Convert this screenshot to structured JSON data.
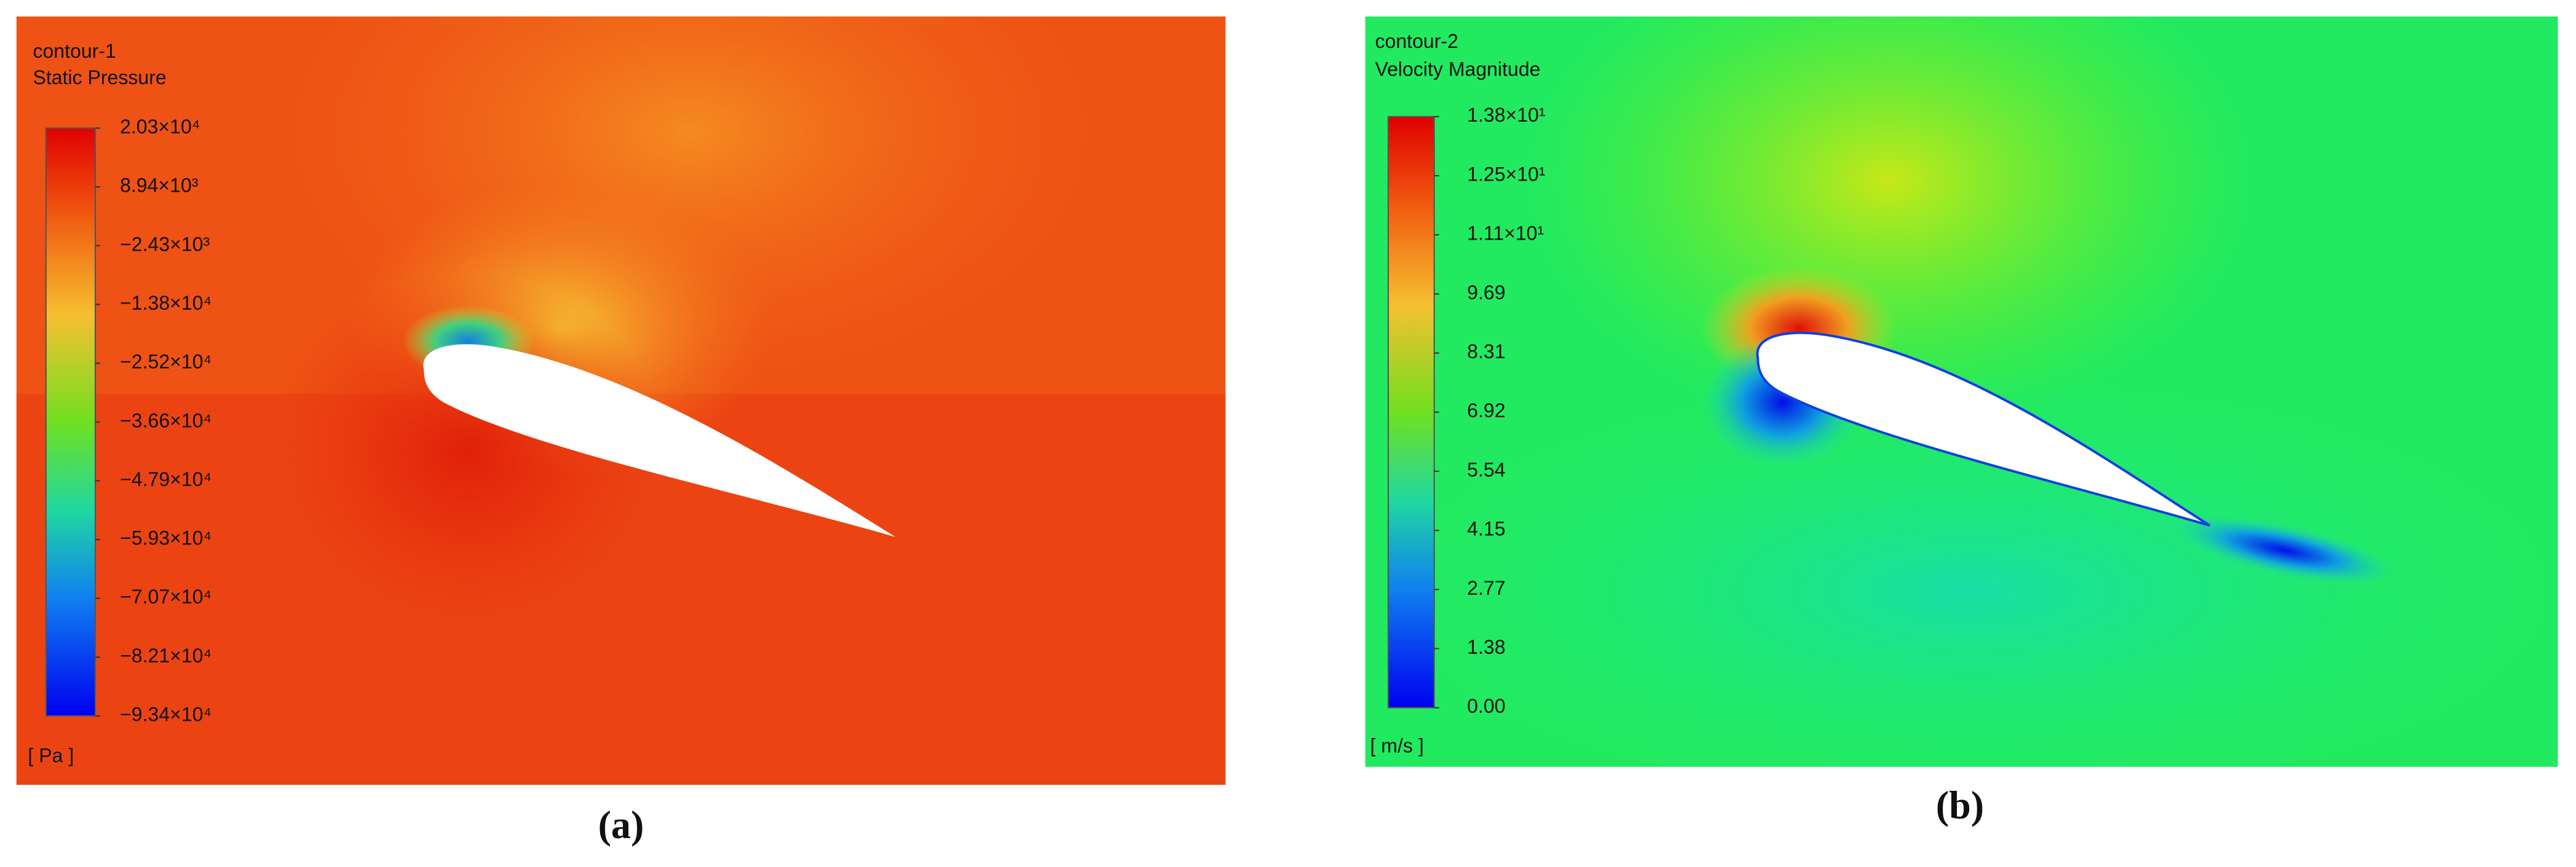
{
  "panels": [
    {
      "title": "contour-1",
      "variable": "Static Pressure",
      "unit": "[ Pa ]",
      "colorbar_labels": [
        "2.03×10⁴",
        "8.94×10³",
        "−2.43×10³",
        "−1.38×10⁴",
        "−2.52×10⁴",
        "−3.66×10⁴",
        "−4.79×10⁴",
        "−5.93×10⁴",
        "−7.07×10⁴",
        "−8.21×10⁴",
        "−9.34×10⁴"
      ],
      "caption": "(a)"
    },
    {
      "title": "contour-2",
      "variable": "Velocity Magnitude",
      "unit": "[ m/s ]",
      "colorbar_labels": [
        "1.38×10¹",
        "1.25×10¹",
        "1.11×10¹",
        "9.69",
        "8.31",
        "6.92",
        "5.54",
        "4.15",
        "2.77",
        "1.38",
        "0.00"
      ],
      "caption": "(b)"
    }
  ]
}
